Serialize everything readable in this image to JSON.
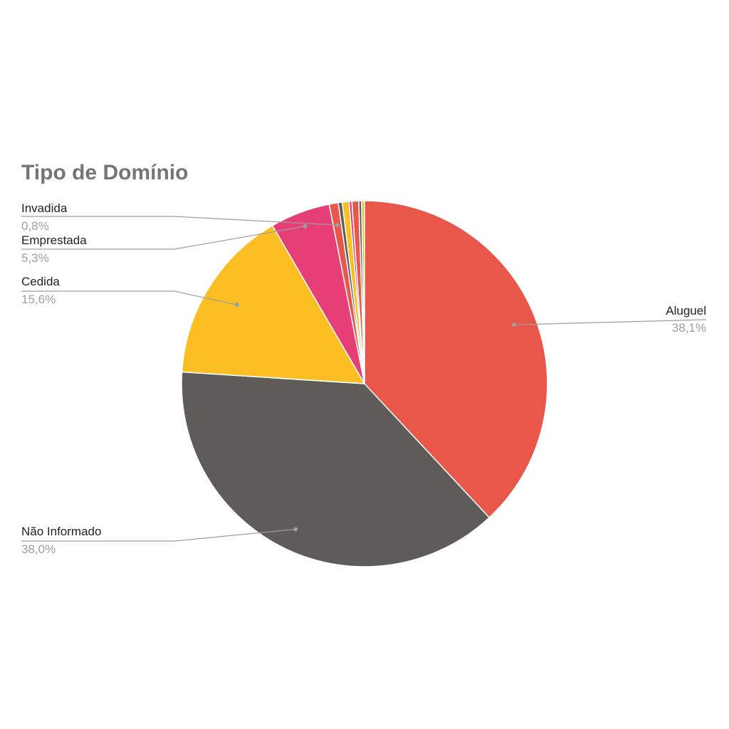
{
  "chart_data": {
    "type": "pie",
    "title": "Tipo de Domínio",
    "slices": [
      {
        "name": "Aluguel",
        "value": 38.1,
        "label": "38,1%",
        "color": "#e8574a",
        "labeled": true
      },
      {
        "name": "Não Informado",
        "value": 38.0,
        "label": "38,0%",
        "color": "#5e5b58",
        "labeled": true
      },
      {
        "name": "Cedida",
        "value": 15.6,
        "label": "15,6%",
        "color": "#fbbf24",
        "labeled": true
      },
      {
        "name": "Empresta da",
        "value": 5.3,
        "label": "5,3%",
        "color": "#e63e77",
        "labeled": true
      },
      {
        "name": "Invadida",
        "value": 0.8,
        "label": "0,8%",
        "color": "#e8574a",
        "labeled": true
      },
      {
        "name": "",
        "value": 0.35,
        "label": "",
        "color": "#5e5b58",
        "labeled": false
      },
      {
        "name": "",
        "value": 0.6,
        "label": "",
        "color": "#fbbf24",
        "labeled": false
      },
      {
        "name": "",
        "value": 0.25,
        "label": "",
        "color": "#e63e77",
        "labeled": false
      },
      {
        "name": "",
        "value": 0.6,
        "label": "",
        "color": "#e8574a",
        "labeled": false
      },
      {
        "name": "",
        "value": 0.25,
        "label": "",
        "color": "#5e5b58",
        "labeled": false
      },
      {
        "name": "",
        "value": 0.25,
        "label": "",
        "color": "#fbbf24",
        "labeled": false
      }
    ],
    "legend": "none",
    "start_angle_deg": 0
  }
}
